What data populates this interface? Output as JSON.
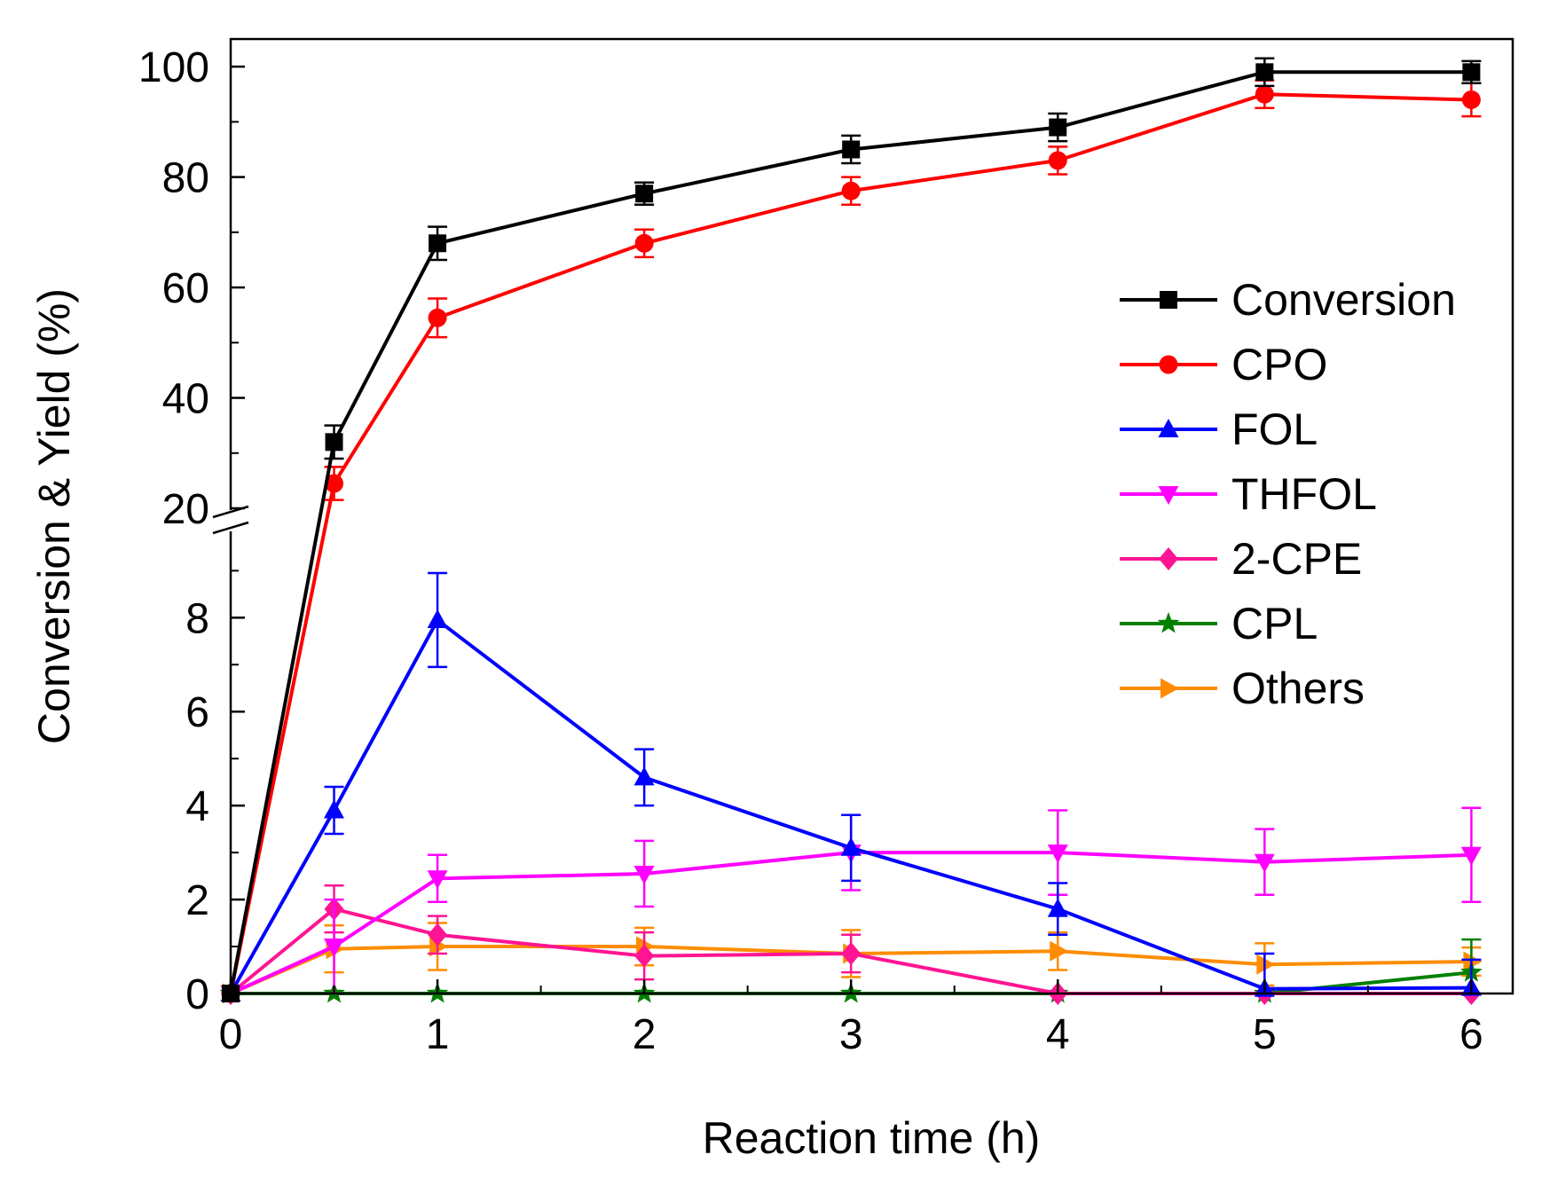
{
  "chart_data": {
    "type": "line",
    "xlabel": "Reaction time (h)",
    "ylabel": "Conversion & Yield (%)",
    "x": [
      0,
      0.5,
      1,
      2,
      3,
      4,
      5,
      6
    ],
    "xlim": [
      0,
      6.2
    ],
    "xticks": [
      "0",
      "1",
      "2",
      "3",
      "4",
      "5",
      "6"
    ],
    "y_axis": {
      "broken": true,
      "lower_range": [
        0,
        9.8
      ],
      "upper_range": [
        20,
        105
      ],
      "lower_ticks": [
        "0",
        "2",
        "4",
        "6",
        "8"
      ],
      "upper_ticks": [
        "20",
        "40",
        "60",
        "80",
        "100"
      ]
    },
    "legend_position": "right",
    "series": [
      {
        "name": "Conversion",
        "color": "#000000",
        "marker": "square",
        "values": [
          0,
          32,
          68,
          77,
          85,
          89,
          99,
          99
        ],
        "errors": [
          0,
          3,
          3,
          2,
          2.5,
          2.5,
          2.5,
          2
        ]
      },
      {
        "name": "CPO",
        "color": "#ff0000",
        "marker": "circle",
        "values": [
          0,
          24.5,
          54.5,
          68,
          77.5,
          83,
          95,
          94
        ],
        "errors": [
          0,
          3,
          3.5,
          2.5,
          2.5,
          2.5,
          2.5,
          3
        ]
      },
      {
        "name": "FOL",
        "color": "#0000ff",
        "marker": "triangle-up",
        "values": [
          0,
          3.9,
          7.95,
          4.6,
          3.1,
          1.8,
          0.1,
          0.12
        ],
        "errors": [
          0,
          0.5,
          1.0,
          0.6,
          0.7,
          0.55,
          0.75,
          0.6
        ]
      },
      {
        "name": "THFOL",
        "color": "#ff00ff",
        "marker": "triangle-down",
        "values": [
          0,
          1.0,
          2.45,
          2.55,
          3.0,
          3.0,
          2.8,
          2.95
        ],
        "errors": [
          0,
          1.0,
          0.5,
          0.7,
          0.8,
          0.9,
          0.7,
          1.0
        ]
      },
      {
        "name": "2-CPE",
        "color": "#ff1493",
        "marker": "diamond",
        "values": [
          0,
          1.8,
          1.25,
          0.8,
          0.85,
          0.0,
          0.0,
          0.0
        ],
        "errors": [
          0,
          0.5,
          0.4,
          0.5,
          0.4,
          0,
          0,
          0
        ]
      },
      {
        "name": "CPL",
        "color": "#008000",
        "marker": "star",
        "values": [
          0,
          0,
          0,
          0,
          0,
          0,
          0,
          0.45
        ],
        "errors": [
          0,
          0,
          0,
          0,
          0,
          0,
          0,
          0.7
        ]
      },
      {
        "name": "Others",
        "color": "#ff8c00",
        "marker": "triangle-right",
        "values": [
          0,
          0.95,
          1.0,
          1.0,
          0.85,
          0.9,
          0.62,
          0.68
        ],
        "errors": [
          0,
          0.5,
          0.5,
          0.4,
          0.5,
          0.4,
          0.45,
          0.3
        ]
      }
    ]
  }
}
